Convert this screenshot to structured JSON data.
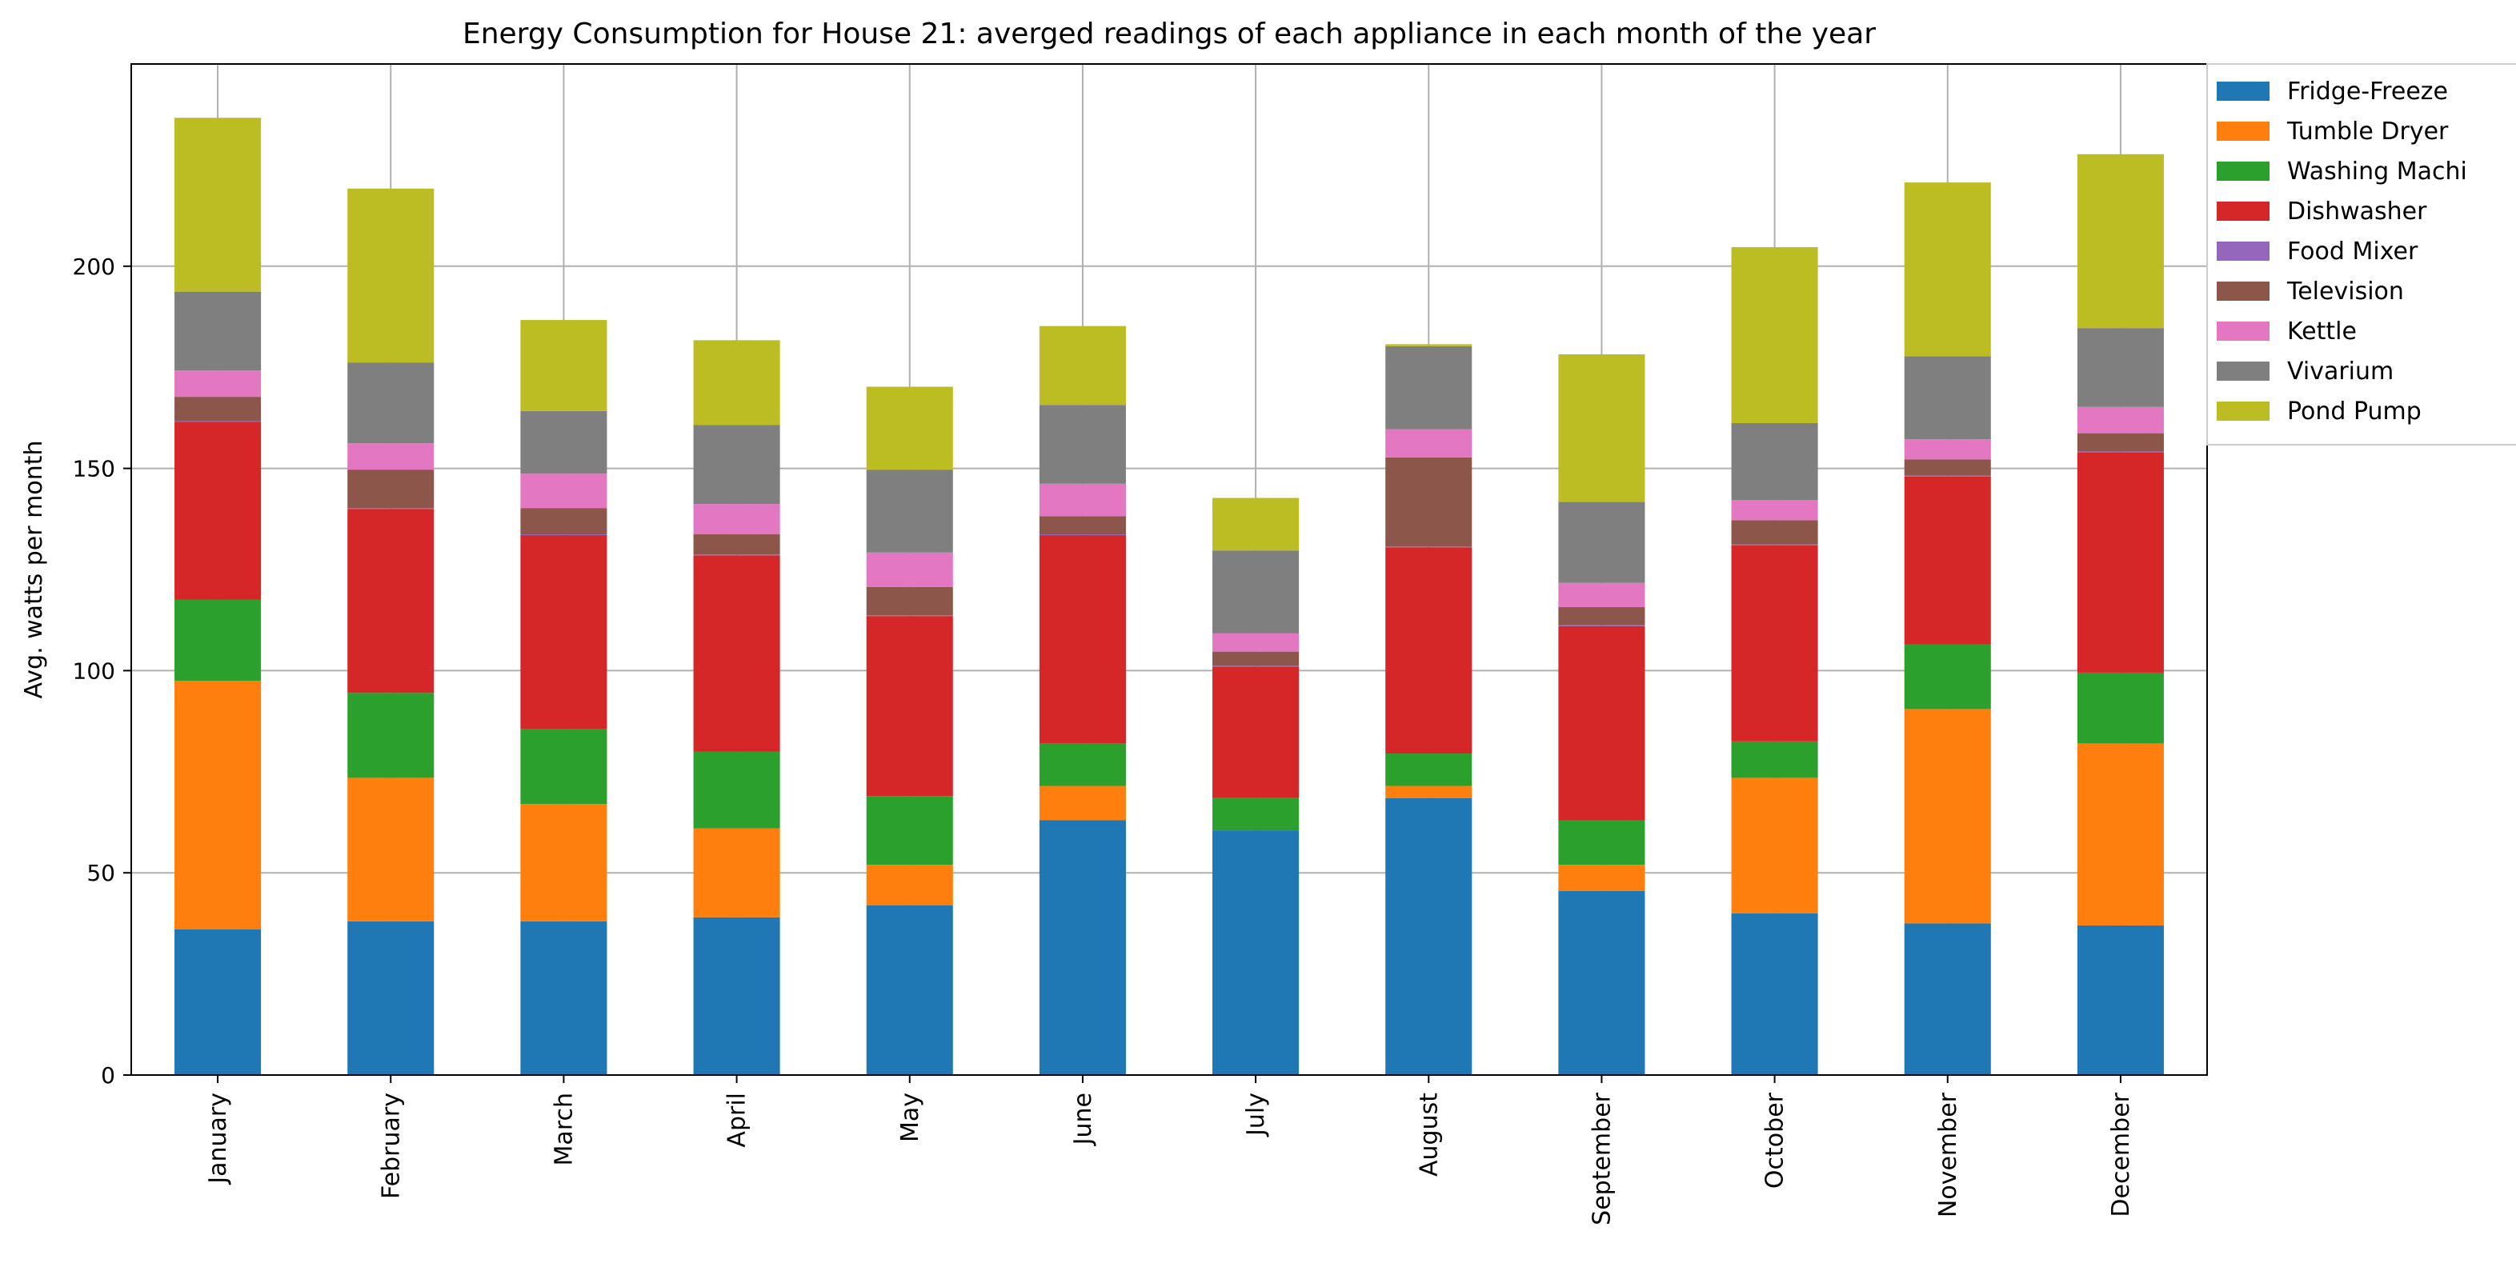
{
  "chart_data": {
    "type": "bar",
    "stacked": true,
    "title": "Energy Consumption for House 21: averged readings of each appliance in each month of the year",
    "xlabel": "",
    "ylabel": "Avg. watts per month",
    "ylim": [
      0,
      250
    ],
    "yticks": [
      0,
      50,
      100,
      150,
      200
    ],
    "grid": true,
    "legend_position": "right, outside top",
    "categories": [
      "January",
      "February",
      "March",
      "April",
      "May",
      "June",
      "July",
      "August",
      "September",
      "October",
      "November",
      "December"
    ],
    "series": [
      {
        "name": "Fridge-Freezer",
        "legend_label": "Fridge-Freeze",
        "color": "#1f77b4",
        "values": [
          36,
          38,
          38,
          39,
          42,
          63,
          60.5,
          68.5,
          45.5,
          40,
          37.5,
          37
        ]
      },
      {
        "name": "Tumble Dryer",
        "legend_label": "Tumble Dryer",
        "color": "#ff7f0e",
        "values": [
          61.5,
          35.5,
          29,
          22,
          10,
          8.5,
          0,
          3,
          6.5,
          33.5,
          53,
          45
        ]
      },
      {
        "name": "Washing Machine",
        "legend_label": "Washing Machi",
        "color": "#2ca02c",
        "values": [
          20,
          21,
          18.5,
          19,
          17,
          10.5,
          8,
          8,
          11,
          9,
          16,
          17.5
        ]
      },
      {
        "name": "Dishwasher",
        "legend_label": "Dishwasher",
        "color": "#d62728",
        "values": [
          44,
          45.5,
          48,
          48.5,
          44.5,
          51.5,
          32.5,
          51,
          48,
          48.5,
          41.5,
          54.5
        ]
      },
      {
        "name": "Food Mixer",
        "legend_label": "Food Mixer",
        "color": "#9467bd",
        "values": [
          0.2,
          0.2,
          0.2,
          0.2,
          0.2,
          0.2,
          0.2,
          0.2,
          0.2,
          0.2,
          0.2,
          0.2
        ]
      },
      {
        "name": "Television",
        "legend_label": "Television",
        "color": "#8c564b",
        "values": [
          6,
          9.5,
          6.5,
          5,
          7,
          4.5,
          3.5,
          22,
          4.5,
          6,
          4,
          4.5
        ]
      },
      {
        "name": "Kettle",
        "legend_label": "Kettle",
        "color": "#e377c2",
        "values": [
          6.5,
          6.5,
          8.5,
          7.5,
          8.5,
          8,
          4.5,
          7,
          6,
          5,
          5,
          6.5
        ]
      },
      {
        "name": "Vivarium",
        "legend_label": "Vivarium",
        "color": "#7f7f7f",
        "values": [
          19.5,
          20,
          15.5,
          19.5,
          20.5,
          19.5,
          20.5,
          20.5,
          20,
          19,
          20.5,
          19.5
        ]
      },
      {
        "name": "Pond Pump",
        "legend_label": "Pond Pump",
        "color": "#bcbd22",
        "values": [
          43,
          43,
          22.5,
          21,
          20.5,
          19.5,
          13,
          0.5,
          36.5,
          43.5,
          43,
          43
        ]
      }
    ]
  }
}
